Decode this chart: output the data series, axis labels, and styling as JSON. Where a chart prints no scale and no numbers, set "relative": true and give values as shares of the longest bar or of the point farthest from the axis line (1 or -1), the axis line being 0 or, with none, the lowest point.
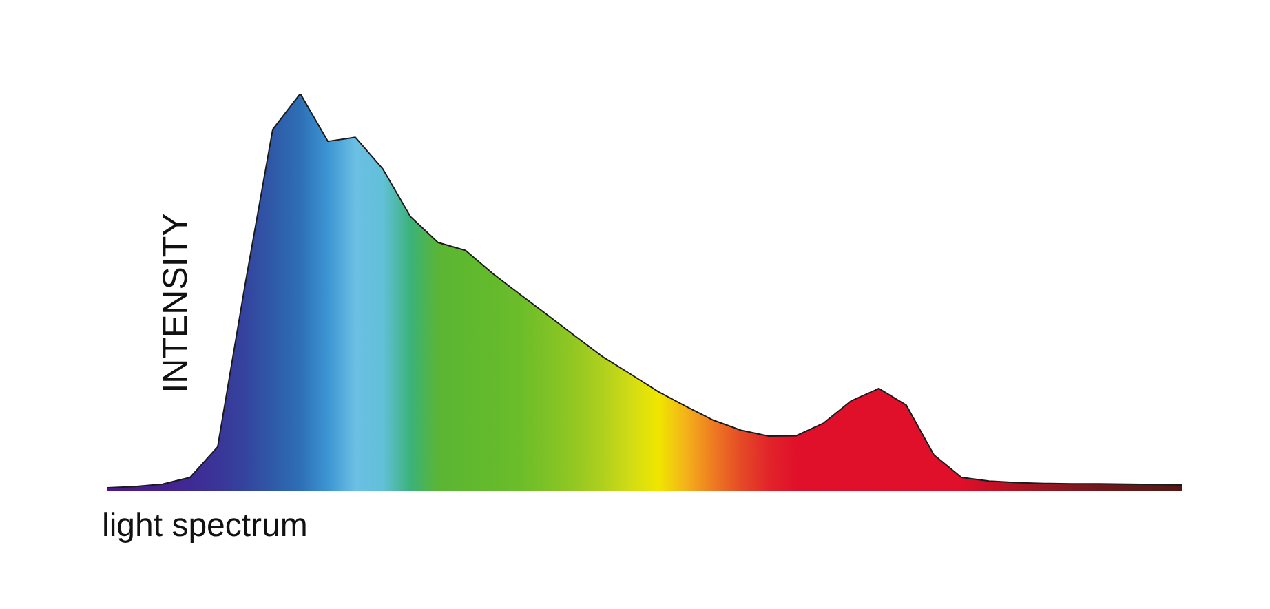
{
  "chart_data": {
    "type": "area",
    "xlabel": "light spectrum",
    "ylabel": "INTENSITY",
    "relative": true,
    "categories": [
      null,
      null,
      null,
      null,
      null,
      null,
      null,
      null,
      null,
      null,
      null,
      null,
      null,
      null,
      null,
      null,
      null,
      null,
      null,
      null,
      null,
      null,
      null,
      null,
      null,
      null,
      null,
      null,
      null,
      null,
      null,
      null,
      null,
      null,
      null,
      null,
      null,
      null,
      null,
      null
    ],
    "series": [
      {
        "color": "#1a1a1a",
        "values": [
          0.007,
          0.01,
          0.016,
          0.033,
          0.11,
          0.52,
          0.91,
          1,
          0.88,
          0.89,
          0.81,
          0.69,
          0.625,
          0.605,
          0.546,
          0.493,
          0.441,
          0.388,
          0.336,
          0.293,
          0.249,
          0.212,
          0.177,
          0.152,
          0.137,
          0.138,
          0.17,
          0.226,
          0.257,
          0.215,
          0.09,
          0.033,
          0.024,
          0.02,
          0.018,
          0.017,
          0.017,
          0.016,
          0.015,
          0.014
        ],
        "colors": [
          "#4a1a86",
          "#4a1d8c",
          "#45228f",
          "#3f2a95",
          "#3a3598",
          "#34449e",
          "#2f5aa8",
          "#2e6fb6",
          "#3c95d2",
          "#6bbfe4",
          "#62c0d8",
          "#3bb27a",
          "#5ab535",
          "#5fb82e",
          "#64ba2c",
          "#6cbd2a",
          "#7ec226",
          "#94c822",
          "#b0d01e",
          "#d2dc14",
          "#f0e600",
          "#f4b21a",
          "#ee7a22",
          "#e54a26",
          "#e2242a",
          "#e0102a",
          "#e00f2a",
          "#e00f2a",
          "#e00f2a",
          "#e00f2a",
          "#e00f2a",
          "#e00f2a",
          "#c81026",
          "#b01424",
          "#981622",
          "#84181f",
          "#72181c",
          "#66181a",
          "#5e1818",
          "#561616"
        ]
      }
    ]
  }
}
